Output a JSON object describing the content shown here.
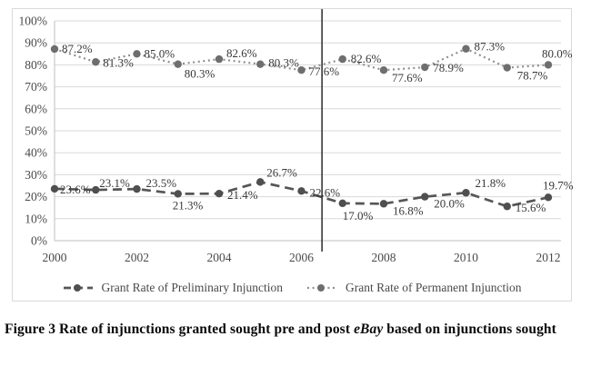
{
  "chart_data": {
    "type": "line",
    "title": "",
    "xlabel": "",
    "ylabel": "",
    "x": [
      2000,
      2001,
      2002,
      2003,
      2004,
      2005,
      2006,
      2007,
      2008,
      2009,
      2010,
      2011,
      2012
    ],
    "x_tick_labels": [
      "2000",
      "2002",
      "2004",
      "2006",
      "2008",
      "2010",
      "2012"
    ],
    "y_tick_labels": [
      "0%",
      "10%",
      "20%",
      "30%",
      "40%",
      "50%",
      "60%",
      "70%",
      "80%",
      "90%",
      "100%"
    ],
    "ylim": [
      0,
      100
    ],
    "grid": true,
    "legend_position": "bottom",
    "vertical_line_year": 2006.5,
    "series": [
      {
        "name": "Grant Rate of Preliminary Injunction",
        "style": "dashed",
        "color": "#565656",
        "marker_color": "#4f4f4f",
        "values": [
          23.6,
          23.1,
          23.5,
          21.3,
          21.4,
          26.7,
          22.6,
          17.0,
          16.8,
          20.0,
          21.8,
          15.6,
          19.7
        ],
        "labels": [
          "23.6%",
          "23.1%",
          "23.5%",
          "21.3%",
          "21.4%",
          "26.7%",
          "22.6%",
          "17.0%",
          "16.8%",
          "20.0%",
          "21.8%",
          "15.6%",
          "19.7%"
        ]
      },
      {
        "name": "Grant Rate of Permanent Injunction",
        "style": "dotted",
        "color": "#8f8f8f",
        "marker_color": "#6e6e6e",
        "values": [
          87.2,
          81.3,
          85.0,
          80.3,
          82.6,
          80.3,
          77.6,
          82.6,
          77.6,
          78.9,
          87.3,
          78.7,
          80.0
        ],
        "labels": [
          "87.2%",
          "81.3%",
          "85.0%",
          "80.3%",
          "82.6%",
          "80.3%",
          "77.6%",
          "82.6%",
          "77.6%",
          "78.9%",
          "87.3%",
          "78.7%",
          "80.0%"
        ]
      }
    ]
  },
  "colors": {
    "gridline": "#d9d9d9",
    "axis_line": "#bfbfbf",
    "tick_text": "#4a4a4a",
    "data_label_text": "#383838",
    "event_line": "#1c1c1c",
    "chart_border": "#dadada"
  },
  "caption": {
    "prefix": "Figure 3 Rate of injunctions granted sought pre and post ",
    "emphasis": "eBay",
    "suffix": " based on injunctions sought"
  }
}
